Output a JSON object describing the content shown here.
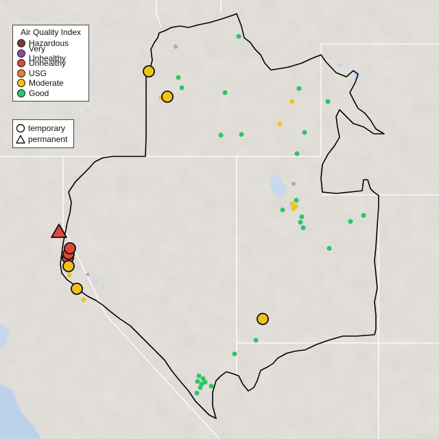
{
  "legend": {
    "title": "Air Quality Index",
    "categories": [
      {
        "label": "Hazardous",
        "color": "#7e3b36"
      },
      {
        "label": "Very Unhealthy",
        "color": "#8e4aa0"
      },
      {
        "label": "Unhealthy",
        "color": "#e0483a"
      },
      {
        "label": "USG",
        "color": "#e87d28"
      },
      {
        "label": "Moderate",
        "color": "#f2c21b"
      },
      {
        "label": "Good",
        "color": "#2ec566"
      }
    ]
  },
  "type_legend": {
    "items": [
      {
        "label": "temporary",
        "shape": "circle-icon"
      },
      {
        "label": "permanent",
        "shape": "triangle-icon"
      }
    ]
  },
  "colors": {
    "background": "#e6e3df",
    "water": "#bcd2e8",
    "boundary": "#000000",
    "state_lines": "#ffffff"
  }
}
